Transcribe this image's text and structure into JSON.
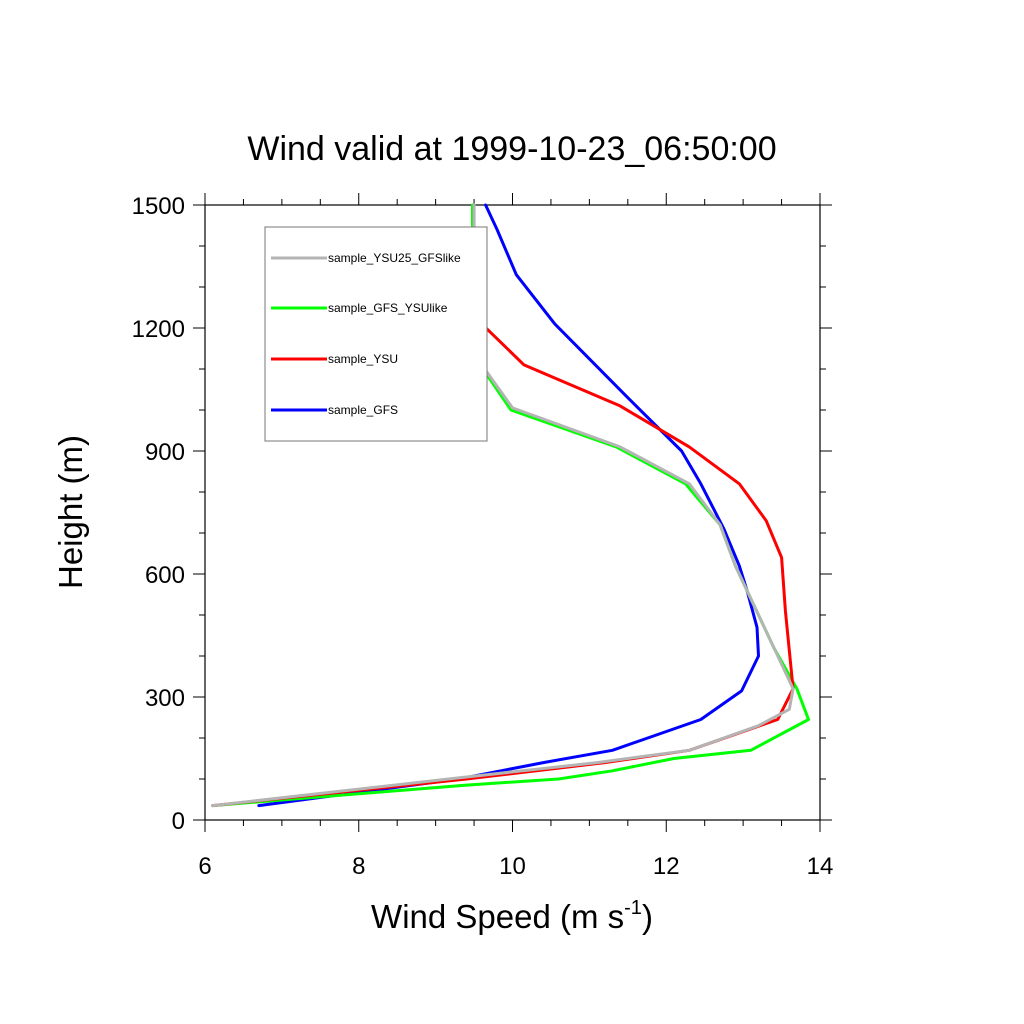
{
  "chart_data": {
    "type": "line",
    "title": "Wind valid at 1999-10-23_06:50:00",
    "xlabel": "Wind Speed (m s",
    "xlabel_superscript": "-1",
    "xlabel_suffix": ")",
    "ylabel": "Height (m)",
    "xlim": [
      6,
      14
    ],
    "ylim": [
      0,
      1500
    ],
    "x_ticks": [
      6,
      8,
      10,
      12,
      14
    ],
    "y_ticks": [
      0,
      300,
      600,
      900,
      1200,
      1500
    ],
    "x_tick_labels": [
      "6",
      "8",
      "10",
      "12",
      "14"
    ],
    "y_tick_labels": [
      "0",
      "300",
      "600",
      "900",
      "1200",
      "1500"
    ],
    "grid": false,
    "legend_position": "top-left",
    "series": [
      {
        "name": "sample_YSU25_GFSlike",
        "color": "#b4b4b4",
        "points": [
          [
            6.1,
            35
          ],
          [
            9.4,
            105
          ],
          [
            11.1,
            140
          ],
          [
            12.3,
            170
          ],
          [
            13.2,
            230
          ],
          [
            13.6,
            270
          ],
          [
            13.65,
            320
          ],
          [
            13.4,
            420
          ],
          [
            13.1,
            540
          ],
          [
            12.9,
            620
          ],
          [
            12.7,
            720
          ],
          [
            12.3,
            820
          ],
          [
            11.4,
            910
          ],
          [
            10.0,
            1005
          ],
          [
            9.6,
            1110
          ],
          [
            9.5,
            1210
          ],
          [
            9.5,
            1300
          ],
          [
            9.5,
            1400
          ],
          [
            9.5,
            1500
          ]
        ]
      },
      {
        "name": "sample_GFS_YSUlike",
        "color": "#00ff00",
        "points": [
          [
            6.1,
            35
          ],
          [
            9.4,
            85
          ],
          [
            10.6,
            100
          ],
          [
            11.3,
            120
          ],
          [
            12.1,
            150
          ],
          [
            13.1,
            170
          ],
          [
            13.85,
            245
          ],
          [
            13.7,
            320
          ],
          [
            13.4,
            420
          ],
          [
            13.1,
            540
          ],
          [
            12.9,
            620
          ],
          [
            12.7,
            720
          ],
          [
            12.25,
            820
          ],
          [
            11.35,
            910
          ],
          [
            9.98,
            1000
          ],
          [
            9.58,
            1110
          ],
          [
            9.48,
            1210
          ],
          [
            9.48,
            1300
          ],
          [
            9.48,
            1400
          ],
          [
            9.48,
            1500
          ]
        ]
      },
      {
        "name": "sample_YSU",
        "color": "#ff0000",
        "points": [
          [
            6.1,
            35
          ],
          [
            9.4,
            100
          ],
          [
            11.2,
            140
          ],
          [
            12.3,
            170
          ],
          [
            13.45,
            245
          ],
          [
            13.65,
            320
          ],
          [
            13.55,
            510
          ],
          [
            13.5,
            640
          ],
          [
            13.3,
            730
          ],
          [
            12.95,
            820
          ],
          [
            12.3,
            910
          ],
          [
            11.4,
            1010
          ],
          [
            10.15,
            1110
          ],
          [
            9.6,
            1210
          ],
          [
            9.5,
            1300
          ]
        ]
      },
      {
        "name": "sample_GFS",
        "color": "#0000ff",
        "points": [
          [
            6.7,
            35
          ],
          [
            9.3,
            100
          ],
          [
            10.4,
            140
          ],
          [
            11.3,
            170
          ],
          [
            12.45,
            245
          ],
          [
            12.98,
            315
          ],
          [
            13.2,
            400
          ],
          [
            13.18,
            470
          ],
          [
            13.05,
            560
          ],
          [
            12.95,
            620
          ],
          [
            12.75,
            710
          ],
          [
            12.45,
            820
          ],
          [
            12.2,
            900
          ],
          [
            11.5,
            1030
          ],
          [
            10.55,
            1210
          ],
          [
            10.05,
            1330
          ],
          [
            9.8,
            1440
          ],
          [
            9.65,
            1500
          ]
        ]
      }
    ]
  }
}
